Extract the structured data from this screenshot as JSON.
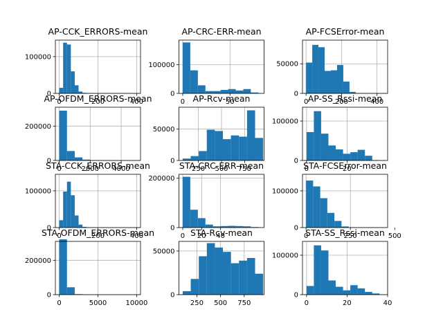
{
  "figure": {
    "background": "#ffffff",
    "bar_color": "#1f77b4",
    "grid_color": "#b0b0b0"
  },
  "chart_data": [
    {
      "type": "bar",
      "title": "AP-CCK_ERRORS-mean",
      "grid": true,
      "xlim": [
        -20,
        420
      ],
      "ylim": [
        0,
        145000
      ],
      "xticks": [
        0,
        200,
        400
      ],
      "xticklabels": [
        "0",
        "200",
        "400"
      ],
      "yticks": [
        0,
        100000
      ],
      "yticklabels": [
        "0",
        "100000"
      ],
      "bin_edges": [
        0,
        20,
        40,
        60,
        80,
        100,
        120,
        140,
        160,
        180,
        200
      ],
      "counts": [
        15000,
        138000,
        133000,
        60000,
        22000,
        5000,
        1500,
        800,
        300,
        100
      ]
    },
    {
      "type": "bar",
      "title": "AP-CRC-ERR-mean",
      "grid": true,
      "xlim": [
        -4,
        86
      ],
      "ylim": [
        0,
        185000
      ],
      "xticks": [
        0,
        50
      ],
      "xticklabels": [
        "0",
        "50"
      ],
      "yticks": [
        0,
        100000
      ],
      "yticklabels": [
        "0",
        "100000"
      ],
      "bin_edges": [
        0,
        8,
        16,
        24,
        32,
        40,
        48,
        56,
        64,
        72,
        80
      ],
      "counts": [
        177000,
        80000,
        28000,
        8000,
        8000,
        12000,
        15000,
        10000,
        15000,
        3000
      ]
    },
    {
      "type": "bar",
      "title": "AP-FCSError-mean",
      "grid": true,
      "xlim": [
        -20,
        460
      ],
      "ylim": [
        0,
        90000
      ],
      "xticks": [
        0,
        200,
        400
      ],
      "xticklabels": [
        "0",
        "200",
        "400"
      ],
      "yticks": [
        0,
        50000
      ],
      "yticklabels": [
        "0",
        "50000"
      ],
      "bin_edges": [
        0,
        35,
        70,
        105,
        140,
        175,
        210,
        245,
        280,
        315,
        350
      ],
      "counts": [
        52000,
        82000,
        78000,
        38000,
        39000,
        48000,
        20000,
        2500,
        500,
        200
      ]
    },
    {
      "type": "bar",
      "title": "AP-OFDM_ERRORS-mean",
      "grid": true,
      "xlim": [
        -250,
        5250
      ],
      "ylim": [
        0,
        310000
      ],
      "xticks": [
        0,
        2000,
        4000
      ],
      "xticklabels": [
        "0",
        "2000",
        "4000"
      ],
      "yticks": [
        0,
        200000
      ],
      "yticklabels": [
        "0",
        "200000"
      ],
      "bin_edges": [
        0,
        500,
        1000,
        1500,
        2000,
        2500,
        3000,
        3500,
        4000,
        4500,
        5000
      ],
      "counts": [
        290000,
        55000,
        18000,
        5000,
        2000,
        800,
        300,
        100,
        50,
        20
      ]
    },
    {
      "type": "bar",
      "title": "AP-Rcv-mean",
      "grid": true,
      "xlim": [
        40,
        960
      ],
      "ylim": [
        0,
        85000
      ],
      "xticks": [
        250,
        500,
        750
      ],
      "xticklabels": [
        "250",
        "500",
        "750"
      ],
      "yticks": [
        0,
        50000
      ],
      "yticklabels": [
        "0",
        "50000"
      ],
      "bin_edges": [
        80,
        167,
        254,
        341,
        428,
        515,
        602,
        689,
        776,
        863,
        950
      ],
      "counts": [
        3000,
        7000,
        15000,
        49000,
        47000,
        34000,
        40000,
        38000,
        80000,
        36000
      ]
    },
    {
      "type": "bar",
      "title": "AP-SS_Rssi-mean",
      "grid": true,
      "xlim": [
        -2,
        40
      ],
      "ylim": [
        0,
        135000
      ],
      "xticks": [
        0,
        20
      ],
      "xticklabels": [
        "0",
        "20"
      ],
      "yticks": [
        0,
        100000
      ],
      "yticklabels": [
        "0",
        "100000"
      ],
      "bin_edges": [
        0,
        3.6,
        7.2,
        10.8,
        14.4,
        18,
        21.6,
        25.2,
        28.8,
        32.4,
        36
      ],
      "counts": [
        72000,
        125000,
        68000,
        38000,
        28000,
        17000,
        21000,
        27000,
        12000,
        1000
      ]
    },
    {
      "type": "bar",
      "title": "STA-CCK_ERRORS-mean",
      "grid": true,
      "xlim": [
        -20,
        420
      ],
      "ylim": [
        0,
        145000
      ],
      "xticks": [
        0,
        200,
        400
      ],
      "xticklabels": [
        "0",
        "200",
        "400"
      ],
      "yticks": [
        0,
        100000
      ],
      "yticklabels": [
        "0",
        "100000"
      ],
      "bin_edges": [
        0,
        20,
        40,
        60,
        80,
        100,
        120,
        140,
        160,
        180,
        200
      ],
      "counts": [
        20000,
        98000,
        125000,
        88000,
        33000,
        8000,
        2000,
        800,
        300,
        100
      ]
    },
    {
      "type": "bar",
      "title": "STA-CRC-ERR-mean",
      "grid": true,
      "xlim": [
        -4,
        86
      ],
      "ylim": [
        0,
        215000
      ],
      "xticks": [
        0,
        20,
        40
      ],
      "xticklabels": [
        "0",
        "20",
        "40"
      ],
      "yticks": [
        0,
        200000
      ],
      "yticklabels": [
        "0",
        "200000"
      ],
      "bin_edges": [
        0,
        8,
        16,
        24,
        32,
        40,
        48,
        56,
        64,
        72,
        80
      ],
      "counts": [
        205000,
        72000,
        38000,
        12000,
        5000,
        6000,
        7000,
        6000,
        5000,
        2000
      ]
    },
    {
      "type": "bar",
      "title": "STA-FCSError-mean",
      "grid": true,
      "xlim": [
        -20,
        460
      ],
      "ylim": [
        0,
        145000
      ],
      "xticks": [
        0,
        250,
        500
      ],
      "xticklabels": [
        "0",
        "250",
        "500"
      ],
      "yticks": [
        0,
        100000
      ],
      "yticklabels": [
        "0",
        "100000"
      ],
      "bin_edges": [
        0,
        40,
        80,
        120,
        160,
        200,
        240,
        280,
        320,
        360,
        400
      ],
      "counts": [
        128000,
        112000,
        80000,
        40000,
        18000,
        3000,
        800,
        300,
        100,
        50
      ]
    },
    {
      "type": "bar",
      "title": "STA-OFDM_ERRORS-mean",
      "grid": true,
      "xlim": [
        -500,
        10500
      ],
      "ylim": [
        0,
        310000
      ],
      "xticks": [
        0,
        5000,
        10000
      ],
      "xticklabels": [
        "0",
        "5000",
        "10000"
      ],
      "yticks": [
        0,
        200000
      ],
      "yticklabels": [
        "0",
        "200000"
      ],
      "bin_edges": [
        0,
        1000,
        2000,
        3000,
        4000,
        5000,
        6000,
        7000,
        8000,
        9000,
        10000
      ],
      "counts": [
        322000,
        43000,
        3000,
        800,
        300,
        100,
        50,
        20,
        10,
        5
      ]
    },
    {
      "type": "bar",
      "title": "STA-Rcv-mean",
      "grid": true,
      "xlim": [
        60,
        960
      ],
      "ylim": [
        0,
        61000
      ],
      "xticks": [
        250,
        500,
        750
      ],
      "xticklabels": [
        "250",
        "500",
        "750"
      ],
      "yticks": [
        0,
        50000
      ],
      "yticklabels": [
        "0",
        "50000"
      ],
      "bin_edges": [
        100,
        185,
        270,
        355,
        440,
        525,
        610,
        695,
        780,
        865,
        950
      ],
      "counts": [
        4000,
        18000,
        44000,
        59000,
        54000,
        49000,
        36000,
        39000,
        42000,
        24000
      ]
    },
    {
      "type": "bar",
      "title": "STA-SS_Rssi-mean",
      "grid": true,
      "xlim": [
        -2,
        40
      ],
      "ylim": [
        0,
        135000
      ],
      "xticks": [
        0,
        20,
        40
      ],
      "xticklabels": [
        "0",
        "20",
        "40"
      ],
      "yticks": [
        0,
        100000
      ],
      "yticklabels": [
        "0",
        "100000"
      ],
      "bin_edges": [
        0,
        3.6,
        7.2,
        10.8,
        14.4,
        18,
        21.6,
        25.2,
        28.8,
        32.4,
        36
      ],
      "counts": [
        22000,
        125000,
        112000,
        36000,
        20000,
        11000,
        24000,
        16000,
        7000,
        3000
      ]
    }
  ]
}
